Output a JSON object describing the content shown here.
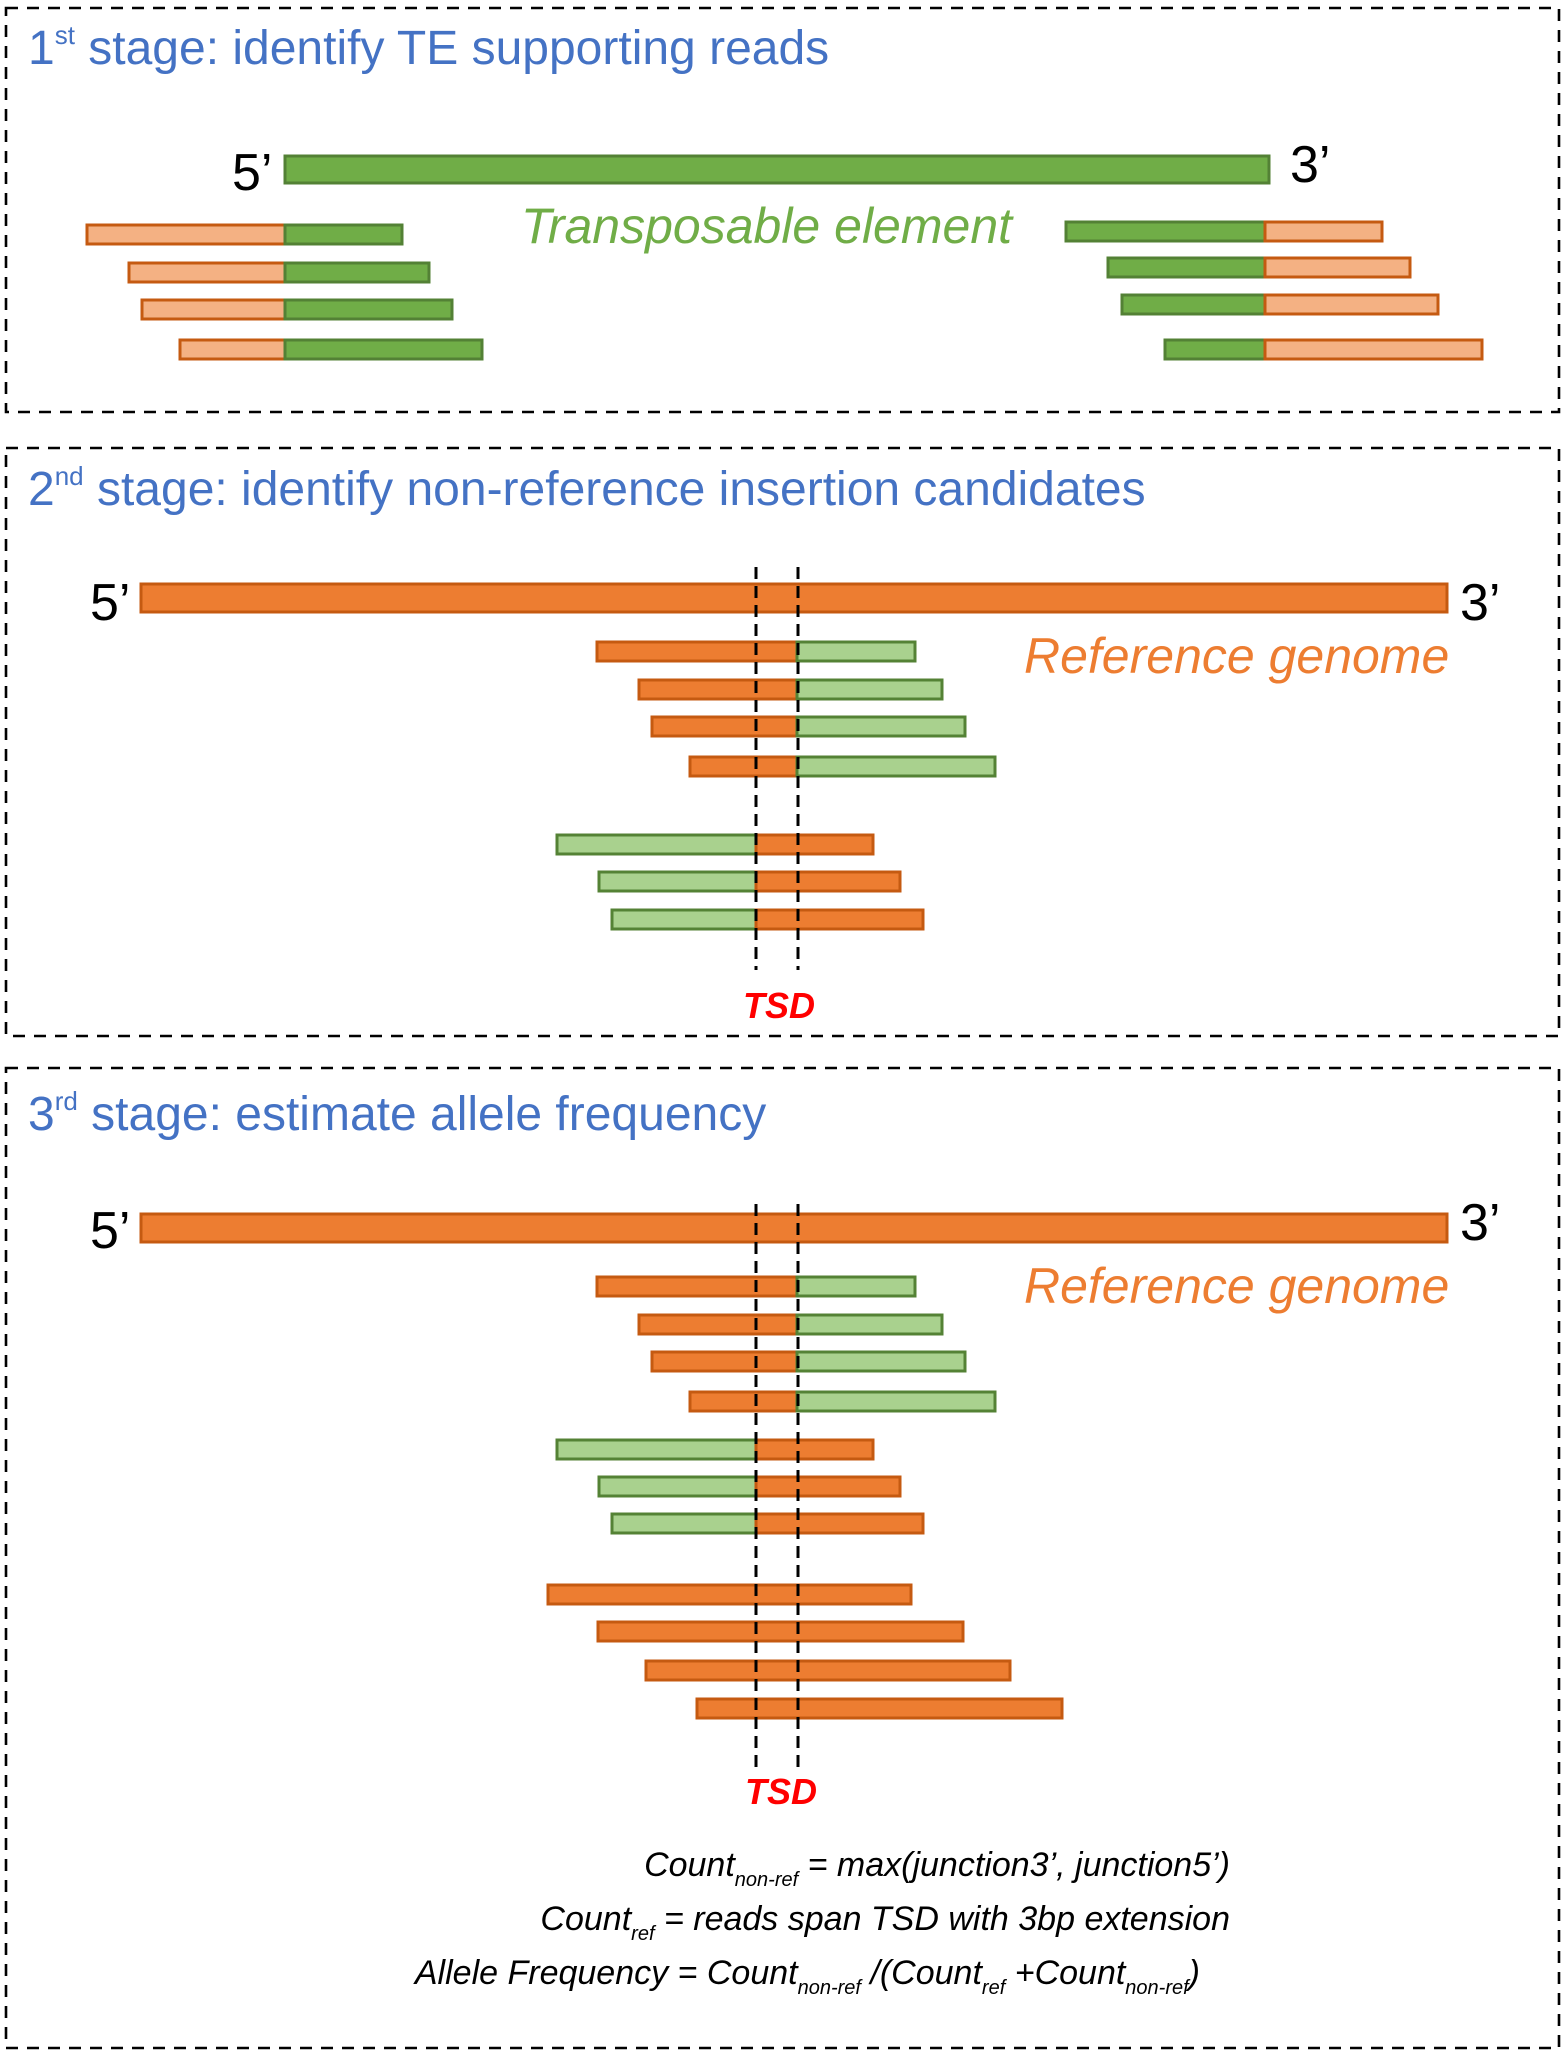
{
  "stages": [
    {
      "id": "stage1",
      "title_num": "1",
      "title_sup": "st",
      "title_text": " stage: identify TE supporting reads",
      "end_left": "5’",
      "end_right": "3’",
      "region_label": "Transposable element"
    },
    {
      "id": "stage2",
      "title_num": "2",
      "title_sup": "nd",
      "title_text": " stage: identify non-reference insertion candidates",
      "end_left": "5’",
      "end_right": "3’",
      "region_label": "Reference genome",
      "tsd_label": "TSD"
    },
    {
      "id": "stage3",
      "title_num": "3",
      "title_sup": "rd",
      "title_text": " stage: estimate allele frequency",
      "end_left": "5’",
      "end_right": "3’",
      "region_label": "Reference genome",
      "tsd_label": "TSD",
      "formulas": [
        {
          "main": "Count",
          "sub": "non-ref",
          "rest": " = max(junction3’, junction5’)"
        },
        {
          "main": "Count",
          "sub": "ref",
          "rest": " = reads span TSD with 3bp extension"
        },
        {
          "parts": [
            {
              "t": "Allele Frequency = Count"
            },
            {
              "sub": "non-ref"
            },
            {
              "t": " /(Count"
            },
            {
              "sub": "ref"
            },
            {
              "t": " +Count"
            },
            {
              "sub": "non-ref"
            },
            {
              "t": ")"
            }
          ]
        }
      ]
    }
  ],
  "colors": {
    "title_blue": "#4472C4",
    "te_green": "#70AD47",
    "te_green_light": "#A9D18E",
    "ref_orange": "#ED7D31",
    "ref_orange_light": "#F4B183",
    "tsd_red": "#FF0000"
  }
}
